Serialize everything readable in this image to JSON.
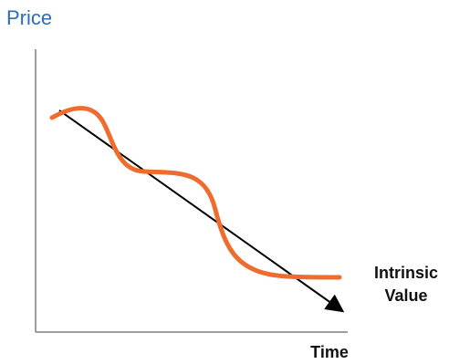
{
  "diagram": {
    "y_axis_label": "Price",
    "x_axis_label": "Time",
    "trend_label_line1": "Intrinsic",
    "trend_label_line2": "Value",
    "colors": {
      "price_curve": "#ee6d2e",
      "trend_arrow": "#000000",
      "axes": "#7f7f7f",
      "y_label": "#2e6db4"
    }
  }
}
